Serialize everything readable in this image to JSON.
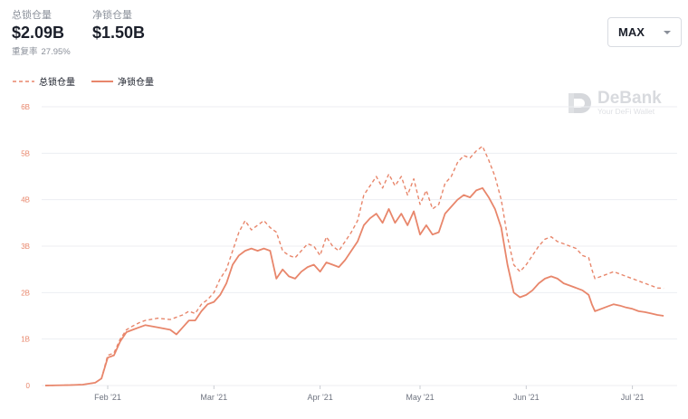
{
  "header": {
    "tvl": {
      "label": "总锁仓量",
      "value": "$2.09B"
    },
    "net_tvl": {
      "label": "净锁仓量",
      "value": "$1.50B"
    },
    "ratio": {
      "label": "重复率",
      "value": "27.95%"
    }
  },
  "range_select": {
    "value": "MAX"
  },
  "watermark": {
    "title": "DeBank",
    "subtitle": "Your DeFi Wallet"
  },
  "colors": {
    "line": "#e8866b",
    "grid": "#eceef2",
    "axis_text": "#6f7480"
  },
  "chart_data": {
    "type": "line",
    "y_ticks": [
      "0",
      "1B",
      "2B",
      "3B",
      "4B",
      "5B",
      "6B"
    ],
    "ylim": [
      0,
      6
    ],
    "x_ticks": [
      "Feb '21",
      "Mar '21",
      "Apr '21",
      "May '21",
      "Jun '21",
      "Jul '21"
    ],
    "x_tick_positions": [
      0.1,
      0.27,
      0.44,
      0.6,
      0.77,
      0.94
    ],
    "grid": true,
    "legend_position": "top-left",
    "series": [
      {
        "name": "总锁仓量",
        "style": "dashed",
        "points": [
          [
            0,
            0
          ],
          [
            0.04,
            0.01
          ],
          [
            0.06,
            0.02
          ],
          [
            0.08,
            0.06
          ],
          [
            0.09,
            0.15
          ],
          [
            0.1,
            0.65
          ],
          [
            0.11,
            0.7
          ],
          [
            0.12,
            1.0
          ],
          [
            0.13,
            1.2
          ],
          [
            0.14,
            1.28
          ],
          [
            0.15,
            1.35
          ],
          [
            0.16,
            1.4
          ],
          [
            0.18,
            1.45
          ],
          [
            0.2,
            1.42
          ],
          [
            0.22,
            1.52
          ],
          [
            0.23,
            1.6
          ],
          [
            0.24,
            1.55
          ],
          [
            0.25,
            1.75
          ],
          [
            0.26,
            1.85
          ],
          [
            0.27,
            2.0
          ],
          [
            0.28,
            2.3
          ],
          [
            0.29,
            2.5
          ],
          [
            0.3,
            2.9
          ],
          [
            0.31,
            3.3
          ],
          [
            0.32,
            3.55
          ],
          [
            0.33,
            3.35
          ],
          [
            0.34,
            3.45
          ],
          [
            0.35,
            3.55
          ],
          [
            0.36,
            3.4
          ],
          [
            0.37,
            3.3
          ],
          [
            0.38,
            2.9
          ],
          [
            0.39,
            2.8
          ],
          [
            0.4,
            2.75
          ],
          [
            0.41,
            2.9
          ],
          [
            0.42,
            3.05
          ],
          [
            0.43,
            3.0
          ],
          [
            0.44,
            2.8
          ],
          [
            0.45,
            3.2
          ],
          [
            0.46,
            3.0
          ],
          [
            0.47,
            2.9
          ],
          [
            0.48,
            3.1
          ],
          [
            0.49,
            3.3
          ],
          [
            0.5,
            3.55
          ],
          [
            0.51,
            4.1
          ],
          [
            0.52,
            4.3
          ],
          [
            0.53,
            4.5
          ],
          [
            0.54,
            4.25
          ],
          [
            0.55,
            4.55
          ],
          [
            0.56,
            4.3
          ],
          [
            0.57,
            4.5
          ],
          [
            0.58,
            4.1
          ],
          [
            0.59,
            4.45
          ],
          [
            0.6,
            3.9
          ],
          [
            0.61,
            4.2
          ],
          [
            0.62,
            3.8
          ],
          [
            0.63,
            3.9
          ],
          [
            0.64,
            4.35
          ],
          [
            0.65,
            4.5
          ],
          [
            0.66,
            4.8
          ],
          [
            0.67,
            4.95
          ],
          [
            0.68,
            4.9
          ],
          [
            0.69,
            5.05
          ],
          [
            0.7,
            5.15
          ],
          [
            0.71,
            4.85
          ],
          [
            0.72,
            4.5
          ],
          [
            0.73,
            4.0
          ],
          [
            0.74,
            3.2
          ],
          [
            0.75,
            2.6
          ],
          [
            0.76,
            2.45
          ],
          [
            0.77,
            2.6
          ],
          [
            0.78,
            2.8
          ],
          [
            0.79,
            3.0
          ],
          [
            0.8,
            3.15
          ],
          [
            0.81,
            3.2
          ],
          [
            0.82,
            3.1
          ],
          [
            0.83,
            3.05
          ],
          [
            0.84,
            3.0
          ],
          [
            0.85,
            2.95
          ],
          [
            0.86,
            2.8
          ],
          [
            0.87,
            2.75
          ],
          [
            0.875,
            2.5
          ],
          [
            0.88,
            2.3
          ],
          [
            0.89,
            2.35
          ],
          [
            0.9,
            2.4
          ],
          [
            0.91,
            2.45
          ],
          [
            0.92,
            2.4
          ],
          [
            0.93,
            2.35
          ],
          [
            0.94,
            2.3
          ],
          [
            0.95,
            2.25
          ],
          [
            0.96,
            2.2
          ],
          [
            0.97,
            2.15
          ],
          [
            0.98,
            2.1
          ],
          [
            0.99,
            2.09
          ]
        ]
      },
      {
        "name": "净锁仓量",
        "style": "solid",
        "points": [
          [
            0,
            0
          ],
          [
            0.04,
            0.01
          ],
          [
            0.06,
            0.02
          ],
          [
            0.08,
            0.06
          ],
          [
            0.09,
            0.15
          ],
          [
            0.1,
            0.6
          ],
          [
            0.11,
            0.65
          ],
          [
            0.12,
            0.95
          ],
          [
            0.13,
            1.15
          ],
          [
            0.14,
            1.2
          ],
          [
            0.15,
            1.25
          ],
          [
            0.16,
            1.3
          ],
          [
            0.18,
            1.25
          ],
          [
            0.2,
            1.2
          ],
          [
            0.21,
            1.1
          ],
          [
            0.22,
            1.25
          ],
          [
            0.23,
            1.4
          ],
          [
            0.24,
            1.4
          ],
          [
            0.25,
            1.6
          ],
          [
            0.26,
            1.75
          ],
          [
            0.27,
            1.8
          ],
          [
            0.28,
            1.95
          ],
          [
            0.29,
            2.2
          ],
          [
            0.3,
            2.6
          ],
          [
            0.31,
            2.8
          ],
          [
            0.32,
            2.9
          ],
          [
            0.33,
            2.95
          ],
          [
            0.34,
            2.9
          ],
          [
            0.35,
            2.95
          ],
          [
            0.36,
            2.9
          ],
          [
            0.37,
            2.3
          ],
          [
            0.38,
            2.5
          ],
          [
            0.39,
            2.35
          ],
          [
            0.4,
            2.3
          ],
          [
            0.41,
            2.45
          ],
          [
            0.42,
            2.55
          ],
          [
            0.43,
            2.6
          ],
          [
            0.44,
            2.45
          ],
          [
            0.45,
            2.65
          ],
          [
            0.46,
            2.6
          ],
          [
            0.47,
            2.55
          ],
          [
            0.48,
            2.7
          ],
          [
            0.49,
            2.9
          ],
          [
            0.5,
            3.1
          ],
          [
            0.51,
            3.45
          ],
          [
            0.52,
            3.6
          ],
          [
            0.53,
            3.7
          ],
          [
            0.54,
            3.5
          ],
          [
            0.55,
            3.8
          ],
          [
            0.56,
            3.5
          ],
          [
            0.57,
            3.7
          ],
          [
            0.58,
            3.45
          ],
          [
            0.59,
            3.75
          ],
          [
            0.6,
            3.25
          ],
          [
            0.61,
            3.45
          ],
          [
            0.62,
            3.25
          ],
          [
            0.63,
            3.3
          ],
          [
            0.64,
            3.7
          ],
          [
            0.65,
            3.85
          ],
          [
            0.66,
            4.0
          ],
          [
            0.67,
            4.1
          ],
          [
            0.68,
            4.05
          ],
          [
            0.69,
            4.2
          ],
          [
            0.7,
            4.25
          ],
          [
            0.71,
            4.05
          ],
          [
            0.72,
            3.8
          ],
          [
            0.73,
            3.4
          ],
          [
            0.74,
            2.6
          ],
          [
            0.75,
            2.0
          ],
          [
            0.76,
            1.9
          ],
          [
            0.77,
            1.95
          ],
          [
            0.78,
            2.05
          ],
          [
            0.79,
            2.2
          ],
          [
            0.8,
            2.3
          ],
          [
            0.81,
            2.35
          ],
          [
            0.82,
            2.3
          ],
          [
            0.83,
            2.2
          ],
          [
            0.84,
            2.15
          ],
          [
            0.85,
            2.1
          ],
          [
            0.86,
            2.05
          ],
          [
            0.87,
            1.95
          ],
          [
            0.875,
            1.75
          ],
          [
            0.88,
            1.6
          ],
          [
            0.89,
            1.65
          ],
          [
            0.9,
            1.7
          ],
          [
            0.91,
            1.75
          ],
          [
            0.92,
            1.72
          ],
          [
            0.93,
            1.68
          ],
          [
            0.94,
            1.65
          ],
          [
            0.95,
            1.6
          ],
          [
            0.96,
            1.58
          ],
          [
            0.97,
            1.55
          ],
          [
            0.98,
            1.52
          ],
          [
            0.99,
            1.5
          ]
        ]
      }
    ]
  }
}
